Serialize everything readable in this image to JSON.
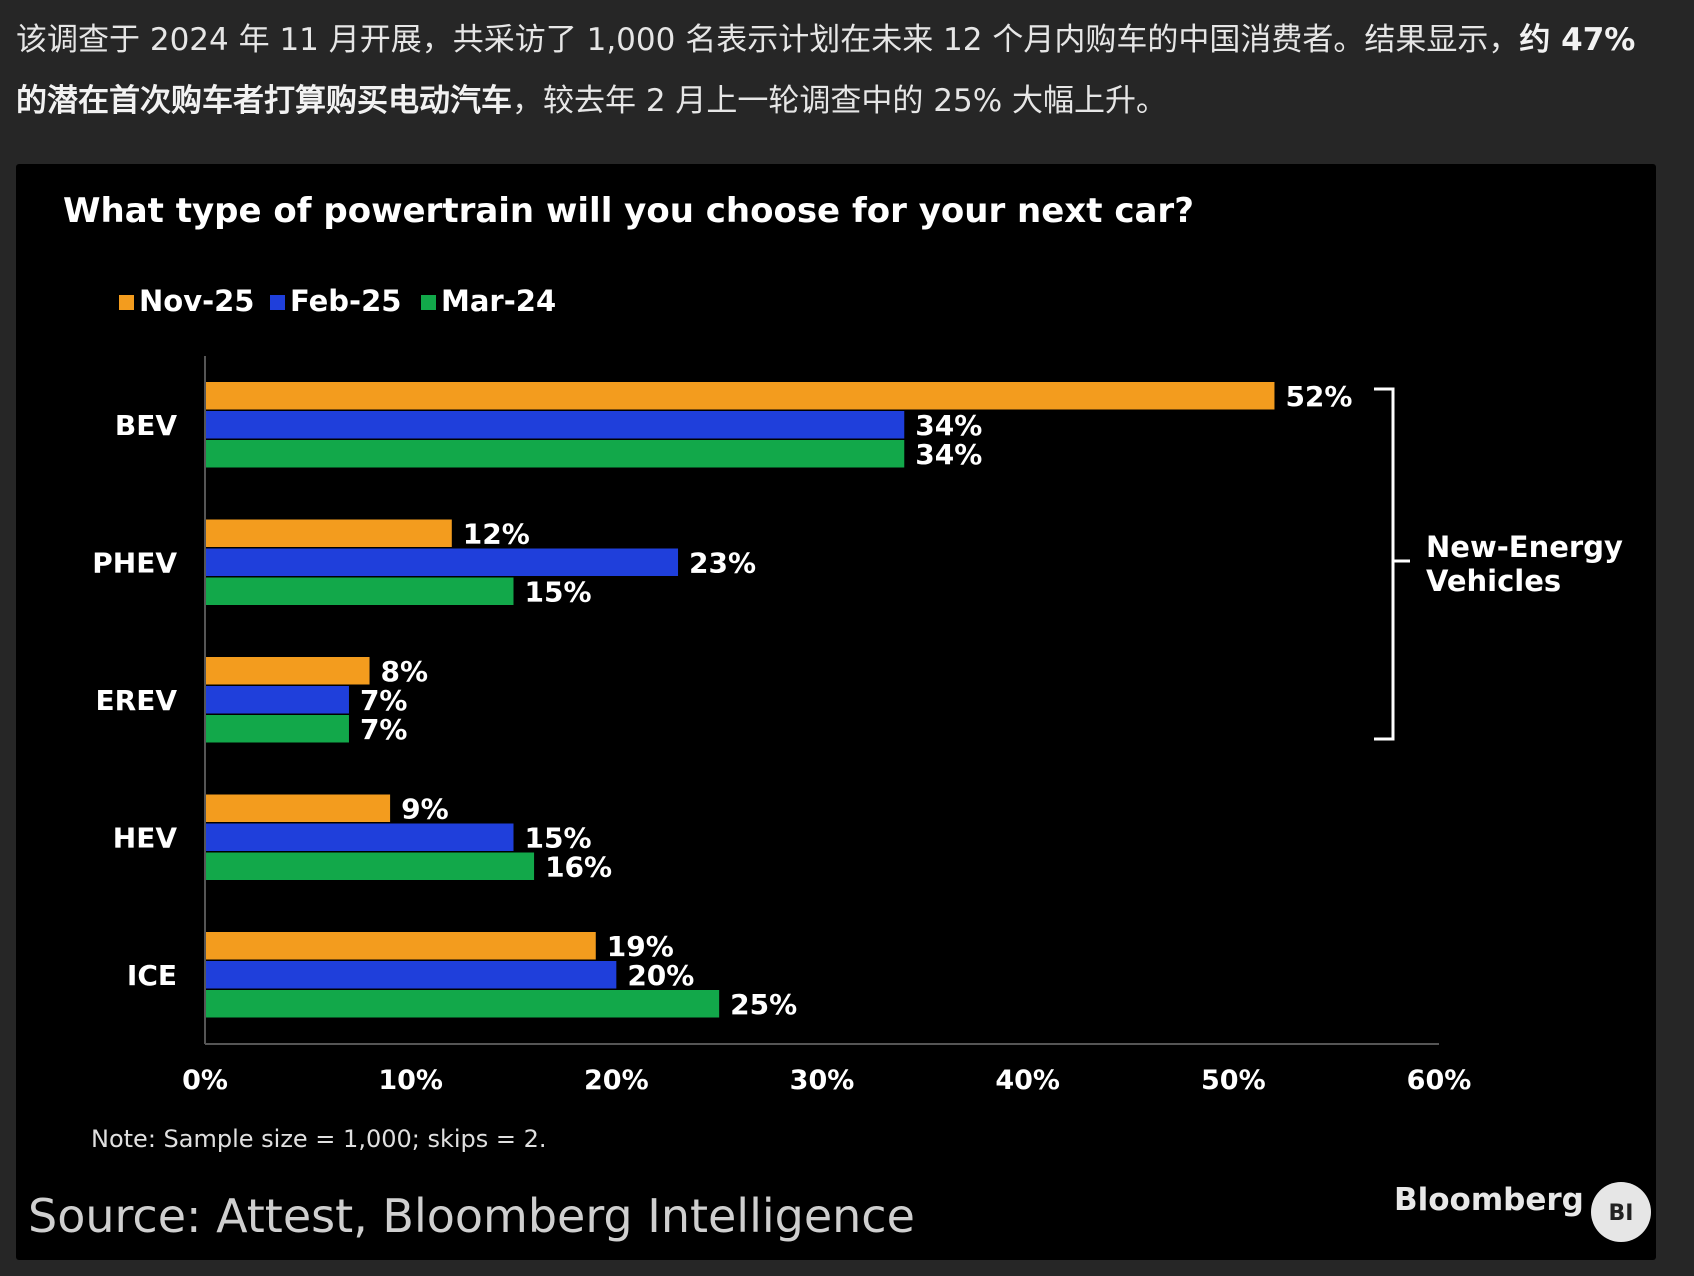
{
  "intro": {
    "part1": "该调查于 2024 年 11 月开展，共采访了 1,000 名表示计划在未来 12 个月内购车的中国消费者。结果显示，",
    "bold": "约 47% 的潜在首次购车者打算购买电动汽车",
    "part2": "，较去年 2 月上一轮调查中的 25% 大幅上升。"
  },
  "chart_data": {
    "type": "bar",
    "orientation": "horizontal",
    "title": "What type of powertrain will you choose for your next car?",
    "categories": [
      "BEV",
      "PHEV",
      "EREV",
      "HEV",
      "ICE"
    ],
    "series": [
      {
        "name": "Nov-25",
        "color": "#f39c1e",
        "values": [
          52,
          12,
          8,
          9,
          19
        ],
        "labels": [
          "52%",
          "12%",
          "8%",
          "9%",
          "19%"
        ]
      },
      {
        "name": "Feb-25",
        "color": "#1f3fdb",
        "values": [
          34,
          23,
          7,
          15,
          20
        ],
        "labels": [
          "34%",
          "23%",
          "7%",
          "15%",
          "20%"
        ]
      },
      {
        "name": "Mar-24",
        "color": "#12a84a",
        "values": [
          34,
          15,
          7,
          16,
          25
        ],
        "labels": [
          "34%",
          "15%",
          "7%",
          "16%",
          "25%"
        ]
      }
    ],
    "xlim": [
      0,
      60
    ],
    "xticks": [
      "0%",
      "10%",
      "20%",
      "30%",
      "40%",
      "50%",
      "60%"
    ],
    "legend_position": "top-left",
    "grid": false,
    "annotation": {
      "label_line1": "New-Energy",
      "label_line2": "Vehicles",
      "covers": [
        "BEV",
        "PHEV",
        "EREV"
      ]
    },
    "note": "Note: Sample size = 1,000; skips = 2.",
    "source": "Source: Attest, Bloomberg Intelligence"
  },
  "brand": {
    "logo": "Bloomberg",
    "badge": "BI"
  }
}
